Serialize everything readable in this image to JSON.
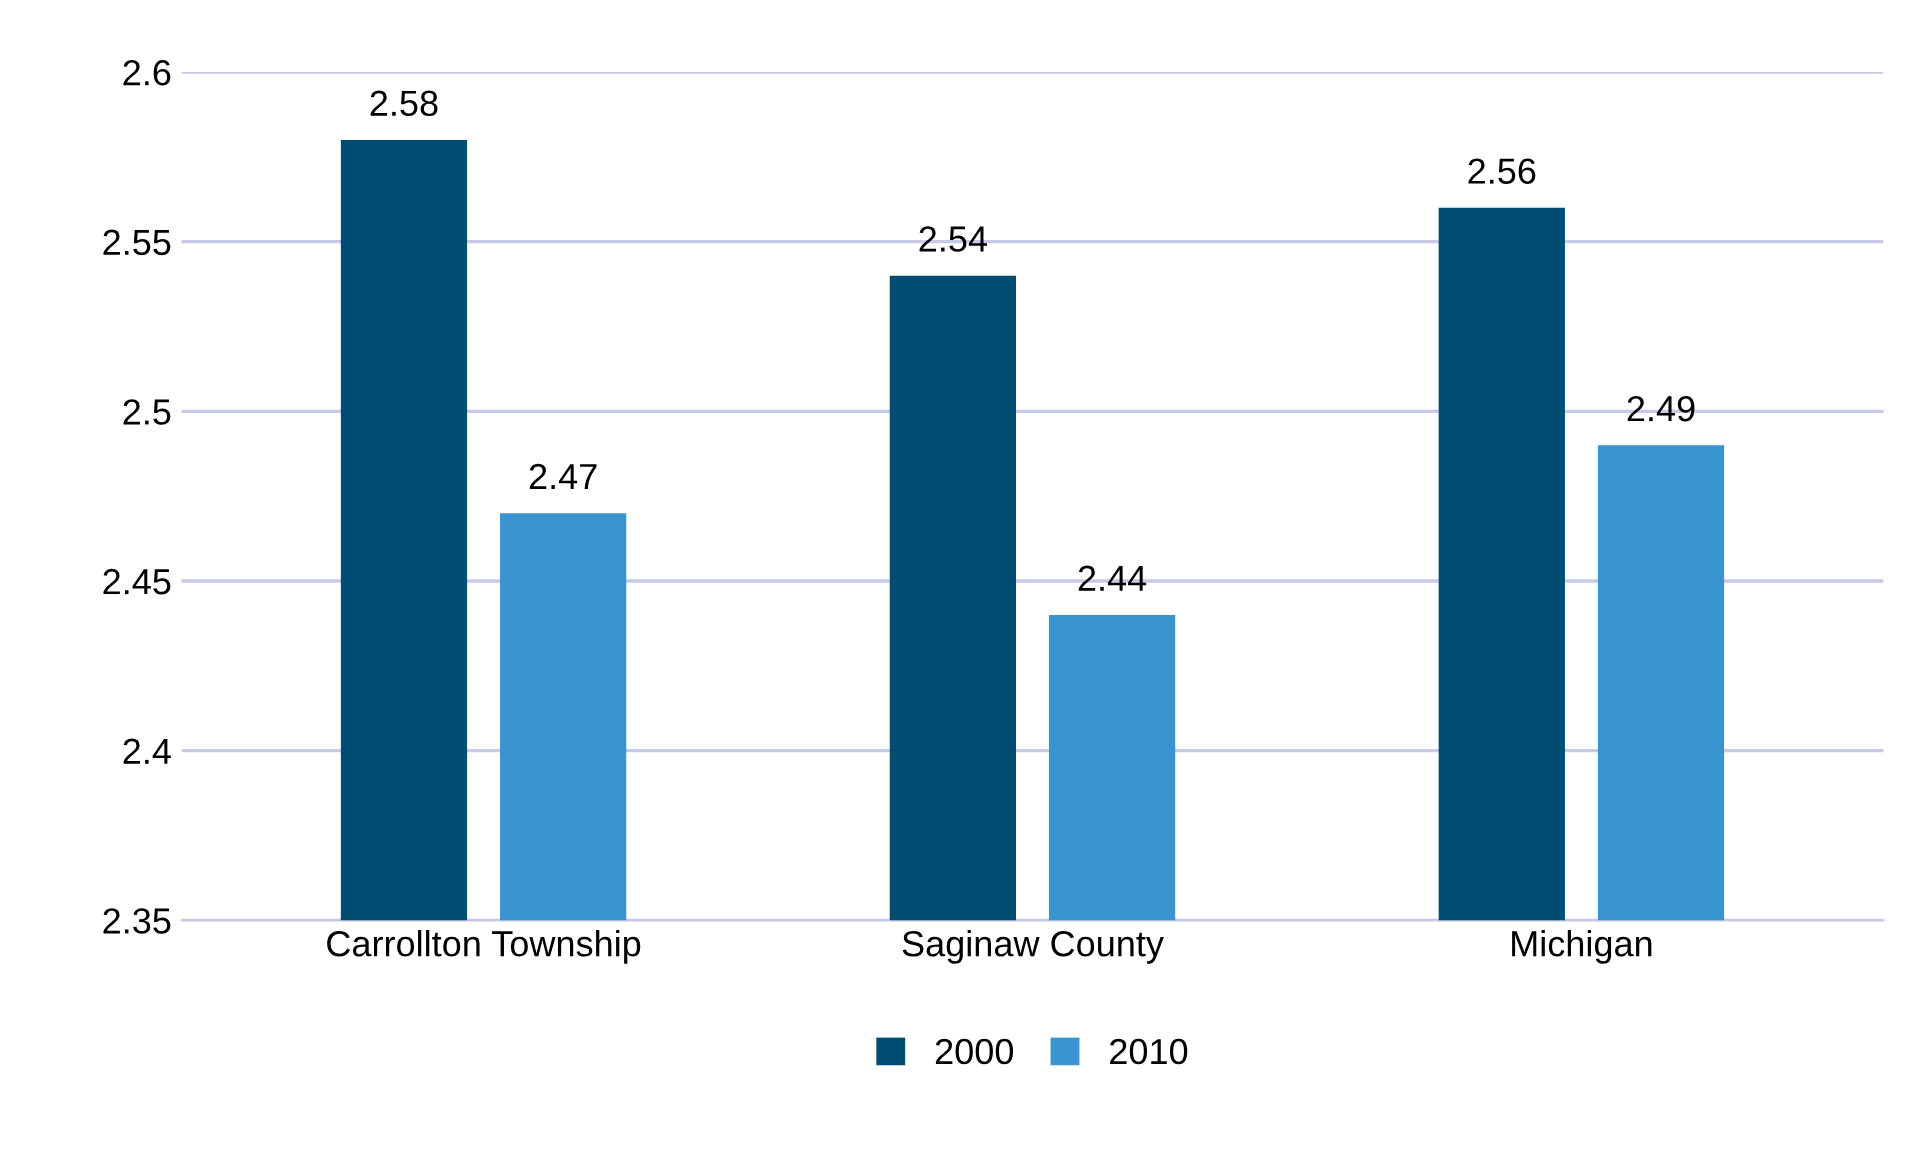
{
  "chart_data": {
    "type": "bar",
    "categories": [
      "Carrollton Township",
      "Saginaw County",
      "Michigan"
    ],
    "series": [
      {
        "name": "2000",
        "color": "#004d71",
        "values": [
          2.58,
          2.54,
          2.56
        ]
      },
      {
        "name": "2010",
        "color": "#3a94d0",
        "values": [
          2.47,
          2.44,
          2.49
        ]
      }
    ],
    "ylim": [
      2.35,
      2.6
    ],
    "yticks": [
      2.35,
      2.4,
      2.45,
      2.5,
      2.55,
      2.6
    ],
    "grid": "y",
    "legend": "bottom",
    "data_labels": true
  }
}
